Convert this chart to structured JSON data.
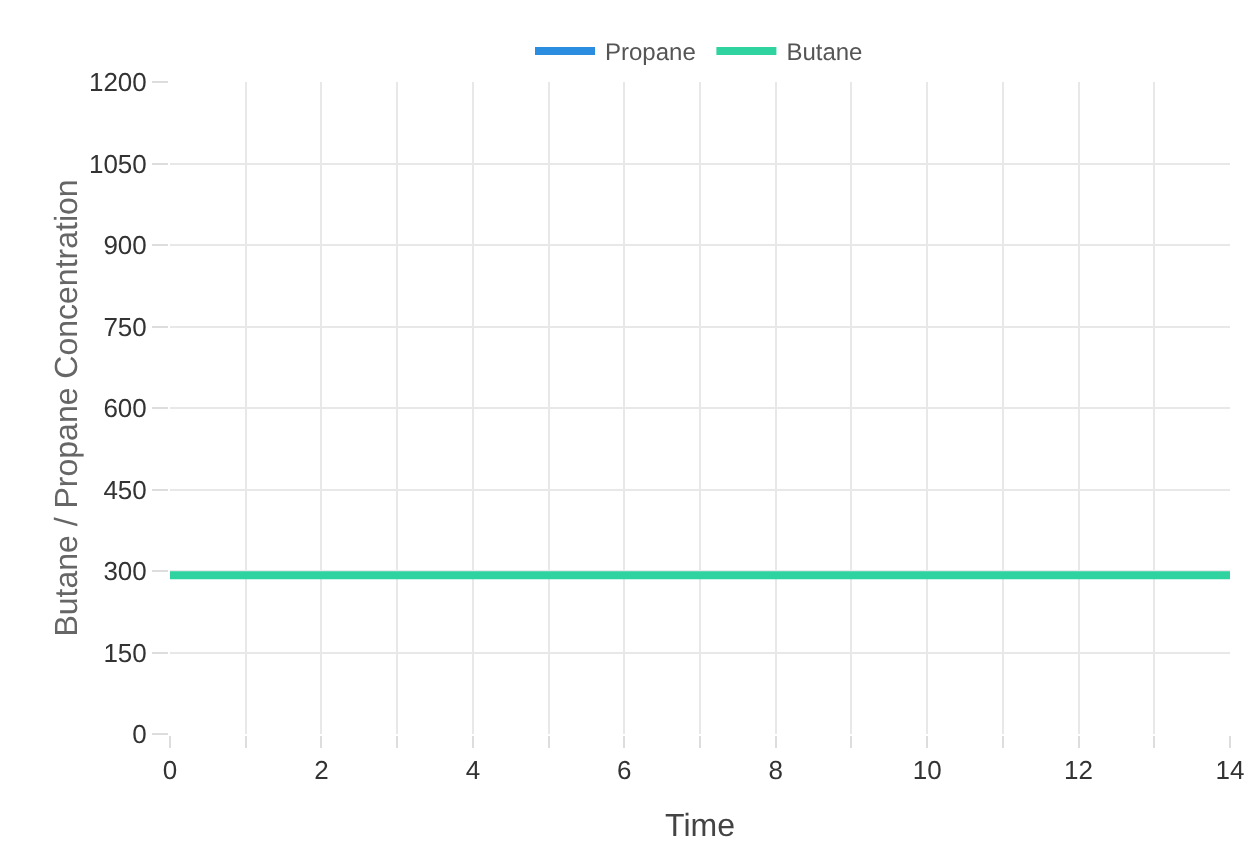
{
  "chart_data": {
    "type": "line",
    "xlabel": "Time",
    "ylabel": "Butane / Propane Concentration",
    "x": [
      0,
      14
    ],
    "series": [
      {
        "name": "Propane",
        "color": "#2a8de0",
        "values": [
          null,
          null
        ]
      },
      {
        "name": "Butane",
        "color": "#2ed3a0",
        "values": [
          292,
          292
        ]
      }
    ],
    "xlim": [
      0,
      14
    ],
    "xticks": [
      0,
      {
        "value": 1,
        "label": null
      },
      2,
      {
        "value": 3,
        "label": null
      },
      4,
      {
        "value": 5,
        "label": null
      },
      6,
      {
        "value": 7,
        "label": null
      },
      8,
      {
        "value": 9,
        "label": null
      },
      10,
      {
        "value": 11,
        "label": null
      },
      12,
      {
        "value": 13,
        "label": null
      },
      14
    ],
    "ylim": [
      0,
      1200
    ],
    "yticks": [
      0,
      150,
      300,
      450,
      600,
      750,
      900,
      1050,
      1200
    ],
    "grid": true,
    "legend": "top",
    "marker": "none",
    "line_style": "solid"
  }
}
